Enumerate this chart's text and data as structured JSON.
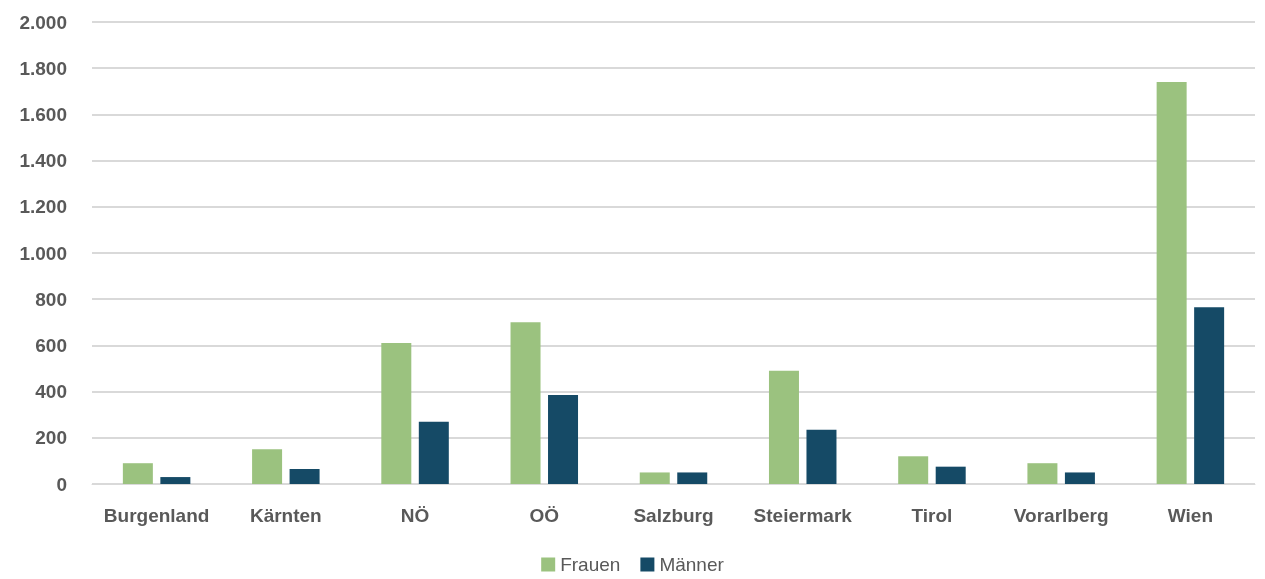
{
  "chart_data": {
    "type": "bar",
    "categories": [
      "Burgenland",
      "Kärnten",
      "NÖ",
      "OÖ",
      "Salzburg",
      "Steiermark",
      "Tirol",
      "Vorarlberg",
      "Wien"
    ],
    "series": [
      {
        "name": "Frauen",
        "color": "#9bc27f",
        "values": [
          90,
          150,
          610,
          700,
          50,
          490,
          120,
          90,
          1740
        ]
      },
      {
        "name": "Männer",
        "color": "#154a66",
        "values": [
          30,
          65,
          270,
          385,
          50,
          235,
          75,
          50,
          765
        ]
      }
    ],
    "ylim": [
      0,
      2000
    ],
    "yticks": [
      0,
      200,
      400,
      600,
      800,
      {
        "value": 1000,
        "label": "1.000"
      },
      {
        "value": 1200,
        "label": "1.200"
      },
      {
        "value": 1400,
        "label": "1.400"
      },
      {
        "value": 1600,
        "label": "1.600"
      },
      {
        "value": 1800,
        "label": "1.800"
      },
      {
        "value": 2000,
        "label": "2.000"
      }
    ],
    "grid": "y",
    "legend": "bottom"
  }
}
